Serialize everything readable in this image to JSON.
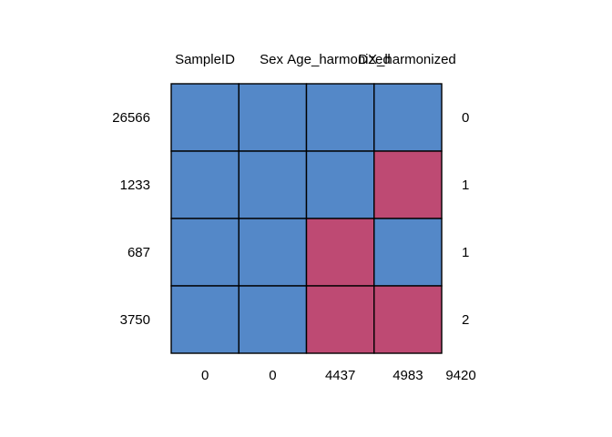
{
  "chart_data": {
    "type": "heatmap",
    "title": "",
    "columns": [
      "SampleID",
      "Sex",
      "Age_harmonized",
      "DX_harmonized"
    ],
    "row_labels": [
      "26566",
      "1233",
      "687",
      "3750"
    ],
    "row_totals": [
      "0",
      "1",
      "1",
      "2"
    ],
    "column_totals": [
      "0",
      "0",
      "4437",
      "4983"
    ],
    "grand_total": "9420",
    "cells": [
      [
        0,
        0,
        0,
        0
      ],
      [
        0,
        0,
        0,
        1
      ],
      [
        0,
        0,
        1,
        0
      ],
      [
        0,
        0,
        1,
        1
      ]
    ],
    "colors": {
      "observed": "#5488C8",
      "missing": "#BE4A73",
      "grid": "#000000"
    }
  }
}
